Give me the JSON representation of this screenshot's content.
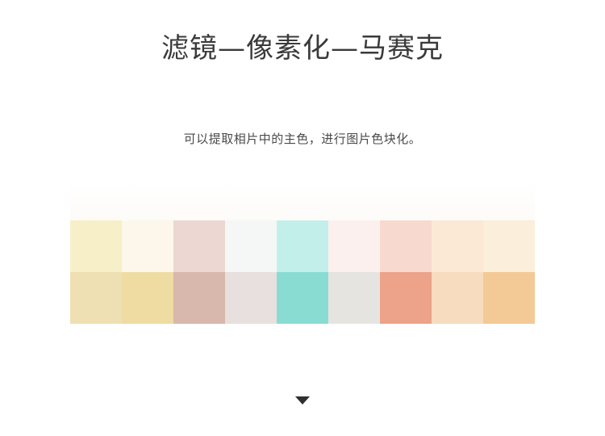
{
  "header": {
    "title": "滤镜—像素化—马赛克",
    "subtitle": "可以提取相片中的主色，进行图片色块化。"
  },
  "mosaic": {
    "rows": [
      [
        "#f7efc7",
        "#fcf7ea",
        "#ecd7d2",
        "#f5f7f7",
        "#c2efea",
        "#fcf0ef",
        "#f8d9cf",
        "#fbe9d6",
        "#fbeedb"
      ],
      [
        "#eee0b3",
        "#eedca3",
        "#d8b7ac",
        "#e8dfdf",
        "#89dcd2",
        "#e6e4e0",
        "#eda28a",
        "#f7dcbf",
        "#f3c996"
      ]
    ]
  },
  "icons": {
    "next": "down-arrow-icon"
  }
}
